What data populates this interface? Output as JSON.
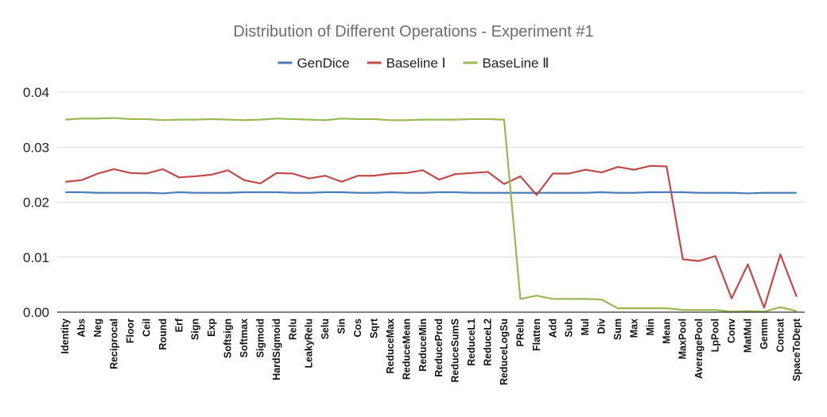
{
  "chart_data": {
    "type": "line",
    "title": "Distribution of Different Operations - Experiment #1",
    "xlabel": "",
    "ylabel": "",
    "ylim": [
      0,
      0.04
    ],
    "yticks": [
      "0.00",
      "0.01",
      "0.02",
      "0.03",
      "0.04"
    ],
    "grid": true,
    "legend_position": "top",
    "categories": [
      "Identity",
      "Abs",
      "Neg",
      "Reciprocal",
      "Floor",
      "Ceil",
      "Round",
      "Erf",
      "Sign",
      "Exp",
      "Softsign",
      "Softmax",
      "Sigmoid",
      "HardSigmoid",
      "Relu",
      "LeakyRelu",
      "Selu",
      "Sin",
      "Cos",
      "Sqrt",
      "ReduceMax",
      "ReduceMean",
      "ReduceMin",
      "ReduceProd",
      "ReduceSumS",
      "ReduceL1",
      "ReduceL2",
      "ReduceLogSu",
      "PRelu",
      "Flatten",
      "Add",
      "Sub",
      "Mul",
      "Div",
      "Sum",
      "Max",
      "Min",
      "Mean",
      "MaxPool",
      "AveragePool",
      "LpPool",
      "Conv",
      "MatMul",
      "Gemm",
      "Concat",
      "SpaceToDept"
    ],
    "series": [
      {
        "name": "GenDice",
        "color": "#4a7ebb",
        "values": [
          0.0218,
          0.0218,
          0.0217,
          0.0217,
          0.0217,
          0.0217,
          0.0216,
          0.0218,
          0.0217,
          0.0217,
          0.0217,
          0.0218,
          0.0218,
          0.0218,
          0.0217,
          0.0217,
          0.0218,
          0.0218,
          0.0217,
          0.0217,
          0.0218,
          0.0217,
          0.0217,
          0.0218,
          0.0218,
          0.0217,
          0.0217,
          0.0217,
          0.0217,
          0.0217,
          0.0217,
          0.0217,
          0.0217,
          0.0218,
          0.0217,
          0.0217,
          0.0218,
          0.0218,
          0.0218,
          0.0217,
          0.0217,
          0.0217,
          0.0216,
          0.0217,
          0.0217,
          0.0217
        ]
      },
      {
        "name": "Baseline Ⅰ",
        "color": "#be4b48",
        "values": [
          0.0237,
          0.024,
          0.0252,
          0.026,
          0.0253,
          0.0252,
          0.026,
          0.0245,
          0.0247,
          0.025,
          0.0258,
          0.024,
          0.0234,
          0.0253,
          0.0252,
          0.0243,
          0.0248,
          0.0237,
          0.0248,
          0.0248,
          0.0252,
          0.0253,
          0.0258,
          0.0241,
          0.0251,
          0.0253,
          0.0255,
          0.0233,
          0.0247,
          0.0213,
          0.0252,
          0.0252,
          0.0259,
          0.0254,
          0.0264,
          0.0259,
          0.0266,
          0.0265,
          0.0096,
          0.0093,
          0.0102,
          0.0025,
          0.0087,
          0.0008,
          0.0105,
          0.0028
        ]
      },
      {
        "name": "BaseLine Ⅱ",
        "color": "#98b954",
        "values": [
          0.035,
          0.0352,
          0.0352,
          0.0353,
          0.0351,
          0.0351,
          0.0349,
          0.035,
          0.035,
          0.0351,
          0.035,
          0.0349,
          0.035,
          0.0352,
          0.0351,
          0.035,
          0.0349,
          0.0352,
          0.0351,
          0.0351,
          0.0349,
          0.0349,
          0.035,
          0.035,
          0.035,
          0.0351,
          0.0351,
          0.035,
          0.0024,
          0.003,
          0.0024,
          0.0024,
          0.0024,
          0.0023,
          0.0007,
          0.0007,
          0.0007,
          0.0007,
          0.0004,
          0.0004,
          0.0004,
          0.0001,
          0.0002,
          0.0001,
          0.0009,
          0.0002
        ]
      }
    ]
  }
}
